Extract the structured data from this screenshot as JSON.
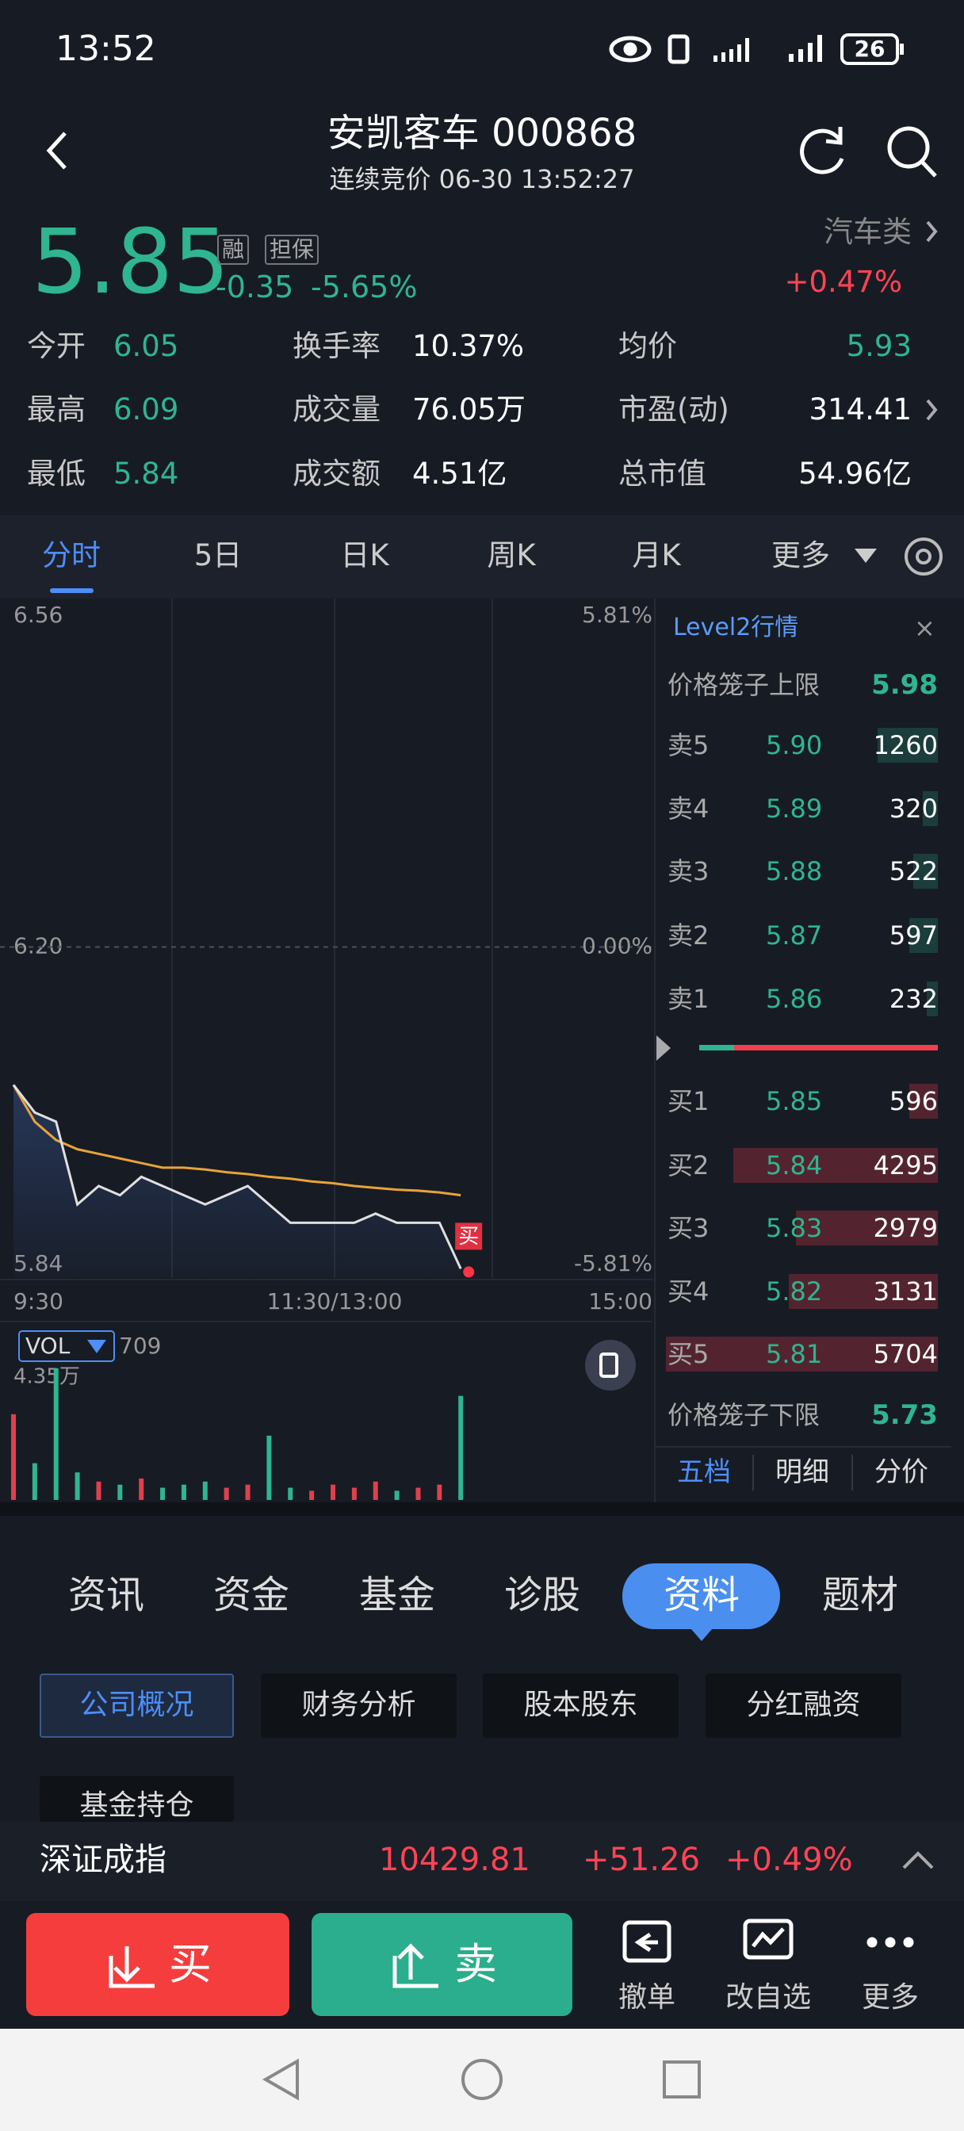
{
  "status_bar": {
    "time": "13:52",
    "battery": "26"
  },
  "header": {
    "title": "安凯客车 000868",
    "subtitle": "连续竞价 06-30 13:52:27"
  },
  "quote": {
    "price": "5.85",
    "badges": [
      "融",
      "担保"
    ],
    "change": "-0.35",
    "change_pct": "-5.65%",
    "sector": "汽车类",
    "sector_change": "+0.47%"
  },
  "stats": [
    {
      "label": "今开",
      "value": "6.05"
    },
    {
      "label": "换手率",
      "value": "10.37%"
    },
    {
      "label": "均价",
      "value": "5.93"
    },
    {
      "label": "最高",
      "value": "6.09"
    },
    {
      "label": "成交量",
      "value": "76.05万"
    },
    {
      "label": "市盈(动)",
      "value": "314.41"
    },
    {
      "label": "最低",
      "value": "5.84"
    },
    {
      "label": "成交额",
      "value": "4.51亿"
    },
    {
      "label": "总市值",
      "value": "54.96亿"
    }
  ],
  "tabs": [
    "分时",
    "5日",
    "日K",
    "周K",
    "月K",
    "更多"
  ],
  "intraday": {
    "ylim": [
      5.84,
      6.56
    ],
    "yticks": [
      5.84,
      {
        "value": 6.2,
        "label": "6.20"
      },
      6.56
    ],
    "y2lim": [
      -5.81,
      5.81
    ],
    "y2ticks": [
      {
        "value": -5.81,
        "label": "-5.81%"
      },
      {
        "value": 0,
        "label": "0.00%"
      },
      {
        "value": 5.81,
        "label": "5.81%"
      }
    ],
    "xticks": [
      "9:30",
      "11:30/13:00",
      "15:00"
    ],
    "price": [
      6.05,
      6.02,
      6.01,
      5.92,
      5.94,
      5.93,
      5.95,
      5.94,
      5.93,
      5.92,
      5.93,
      5.94,
      5.92,
      5.9,
      5.9,
      5.9,
      5.9,
      5.91,
      5.9,
      5.9,
      5.9,
      5.85
    ],
    "avg": [
      6.05,
      6.01,
      5.99,
      5.98,
      5.975,
      5.97,
      5.965,
      5.96,
      5.96,
      5.958,
      5.955,
      5.953,
      5.95,
      5.948,
      5.945,
      5.943,
      5.94,
      5.938,
      5.936,
      5.935,
      5.933,
      5.93
    ],
    "price_color": "#e0e0e0",
    "avg_color": "#e8a33a",
    "marker": "买",
    "volume": {
      "label": "VOL",
      "current": "709",
      "max": 4.35,
      "max_label": "4.35万",
      "values": [
        2.8,
        1.2,
        4.3,
        0.9,
        0.6,
        0.5,
        0.7,
        0.4,
        0.5,
        0.6,
        0.4,
        0.5,
        2.1,
        0.4,
        0.3,
        0.5,
        0.4,
        0.6,
        0.3,
        0.4,
        0.5,
        3.4
      ]
    }
  },
  "level2": {
    "title": "Level2行情",
    "upper_label": "价格笼子上限",
    "upper": "5.98",
    "asks": [
      {
        "label": "卖5",
        "price": "5.90",
        "volume": 1260
      },
      {
        "label": "卖4",
        "price": "5.89",
        "volume": 320
      },
      {
        "label": "卖3",
        "price": "5.88",
        "volume": 522
      },
      {
        "label": "卖2",
        "price": "5.87",
        "volume": 597
      },
      {
        "label": "卖1",
        "price": "5.86",
        "volume": 232
      }
    ],
    "bids": [
      {
        "label": "买1",
        "price": "5.85",
        "volume": 596
      },
      {
        "label": "买2",
        "price": "5.84",
        "volume": 4295
      },
      {
        "label": "买3",
        "price": "5.83",
        "volume": 2979
      },
      {
        "label": "买4",
        "price": "5.82",
        "volume": 3131
      },
      {
        "label": "买5",
        "price": "5.81",
        "volume": 5704
      }
    ],
    "lower_label": "价格笼子下限",
    "lower": "5.73",
    "tabs": [
      "五档",
      "明细",
      "分价"
    ]
  },
  "info_tabs": [
    "资讯",
    "资金",
    "基金",
    "诊股",
    "资料",
    "题材"
  ],
  "sub_tabs": [
    "公司概况",
    "财务分析",
    "股本股东",
    "分红融资",
    "基金持仓"
  ],
  "index_bar": {
    "name": "深证成指",
    "value": "10429.81",
    "change": "+51.26",
    "change_pct": "+0.49%"
  },
  "actions": {
    "buy": "买",
    "sell": "卖",
    "tools": [
      "撤单",
      "改自选",
      "更多"
    ]
  }
}
